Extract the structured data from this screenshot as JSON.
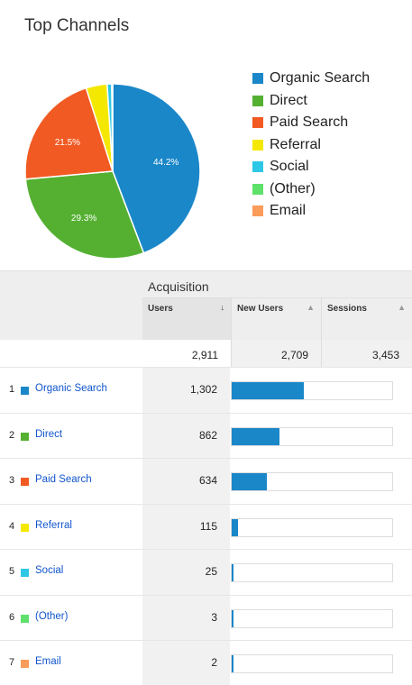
{
  "title": "Top Channels",
  "chart_data": {
    "type": "pie",
    "title": "Top Channels",
    "legend_position": "right",
    "slices": [
      {
        "name": "Organic Search",
        "value": 44.2,
        "color": "#1a87c9",
        "label": "44.2%"
      },
      {
        "name": "Direct",
        "value": 29.3,
        "color": "#55b032",
        "label": "29.3%"
      },
      {
        "name": "Paid Search",
        "value": 21.5,
        "color": "#f15a22",
        "label": "21.5%"
      },
      {
        "name": "Referral",
        "value": 3.9,
        "color": "#f5e800",
        "label": ""
      },
      {
        "name": "Social",
        "value": 0.85,
        "color": "#2ec7e6",
        "label": ""
      },
      {
        "name": "(Other)",
        "value": 0.1,
        "color": "#5ee06a",
        "label": ""
      },
      {
        "name": "Email",
        "value": 0.07,
        "color": "#fb9c5a",
        "label": ""
      }
    ]
  },
  "table": {
    "group_header": "Acquisition",
    "columns": [
      {
        "label": "Users",
        "sort": "↓"
      },
      {
        "label": "New Users",
        "sort": "▲"
      },
      {
        "label": "Sessions",
        "sort": "▲"
      }
    ],
    "totals": [
      "2,911",
      "2,709",
      "3,453"
    ],
    "max_users": 2911,
    "rows": [
      {
        "index": "1",
        "name": "Organic Search",
        "color": "#1a87c9",
        "users": 1302,
        "users_label": "1,302"
      },
      {
        "index": "2",
        "name": "Direct",
        "color": "#55b032",
        "users": 862,
        "users_label": "862"
      },
      {
        "index": "3",
        "name": "Paid Search",
        "color": "#f15a22",
        "users": 634,
        "users_label": "634"
      },
      {
        "index": "4",
        "name": "Referral",
        "color": "#f5e800",
        "users": 115,
        "users_label": "115"
      },
      {
        "index": "5",
        "name": "Social",
        "color": "#2ec7e6",
        "users": 25,
        "users_label": "25"
      },
      {
        "index": "6",
        "name": "(Other)",
        "color": "#5ee06a",
        "users": 3,
        "users_label": "3"
      },
      {
        "index": "7",
        "name": "Email",
        "color": "#fb9c5a",
        "users": 2,
        "users_label": "2"
      }
    ]
  }
}
